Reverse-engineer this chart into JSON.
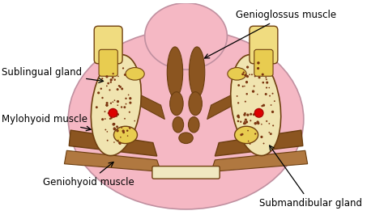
{
  "bg_color": "#ffffff",
  "pink": "#f5b8c4",
  "brown": "#8B5520",
  "dark_brown": "#6b3e10",
  "light_brown": "#b07840",
  "yellow": "#e8cc50",
  "yellow_light": "#f0dc80",
  "cream": "#f0e0a0",
  "gland_bg": "#f0e4b0",
  "red": "#dd0000",
  "outline": "#806010",
  "outline_brown": "#704010",
  "labels": {
    "genioglossus": "Genioglossus muscle",
    "sublingual": "Sublingual gland",
    "mylohyoid": "Mylohyoid muscle",
    "geniohyoid": "Geniohyoid muscle",
    "submandibular": "Submandibular gland"
  },
  "fs": 8.5
}
